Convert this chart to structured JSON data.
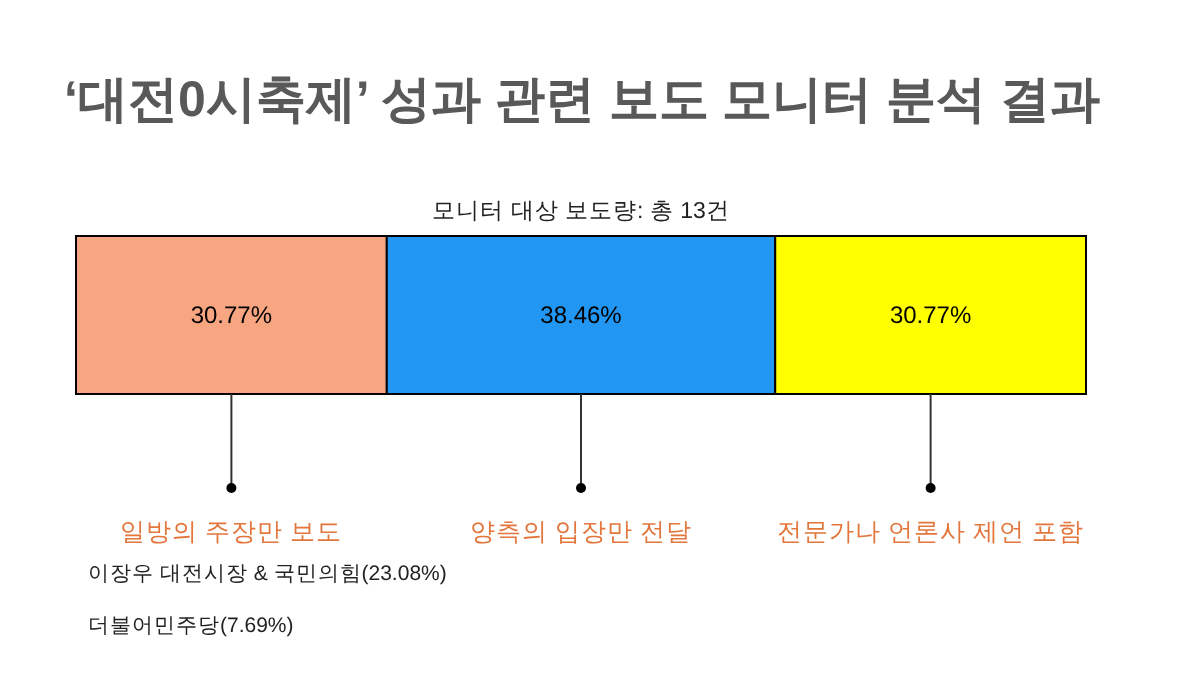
{
  "chart_data": {
    "type": "bar",
    "orientation": "horizontal",
    "stacked": true,
    "title": "‘대전0시축제’ 성과 관련 보도 모니터 분석 결과",
    "subtitle": "모니터 대상 보도량: 총 13건",
    "categories": [
      null
    ],
    "xlim": [
      0,
      100
    ],
    "tick_labels": false,
    "series": [
      {
        "color": "#f8a582",
        "values": [
          30.77
        ],
        "value_labels": [
          "30.77%"
        ]
      },
      {
        "color": "#2196f3",
        "values": [
          38.46
        ],
        "value_labels": [
          "38.46%"
        ]
      },
      {
        "color": "#ffff00",
        "values": [
          30.77
        ],
        "value_labels": [
          "30.77%"
        ]
      }
    ],
    "annotations": [
      "일방의 주장만 보도",
      "양측의 입장만 전달",
      "전문가나 언론사 제언 포함",
      "이장우 대전시장 & 국민의힘(23.08%)",
      "더불어민주당(7.69%)"
    ]
  }
}
